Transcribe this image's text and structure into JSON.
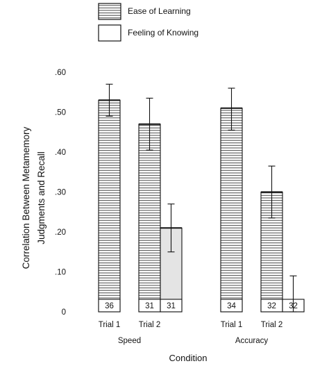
{
  "chart_data": {
    "type": "bar",
    "ylabel": [
      "Correlation Between Metamemory",
      "Judgments and Recall"
    ],
    "xlabel": "Condition",
    "ylim": [
      0,
      0.6
    ],
    "yticks": [
      {
        "value": 0,
        "label": "0"
      },
      {
        "value": 0.1,
        "label": ".10"
      },
      {
        "value": 0.2,
        "label": ".20"
      },
      {
        "value": 0.3,
        "label": ".30"
      },
      {
        "value": 0.4,
        "label": ".40"
      },
      {
        "value": 0.5,
        "label": ".50"
      },
      {
        "value": 0.6,
        "label": ".60"
      }
    ],
    "legend": [
      {
        "label": "Ease of Learning",
        "pattern": "hatched"
      },
      {
        "label": "Feeling of Knowing",
        "pattern": "open"
      }
    ],
    "groups": [
      {
        "name": "Speed",
        "trials": [
          {
            "label": "Trial 1",
            "bars": [
              {
                "series": "Ease of Learning",
                "value": 0.53,
                "err_low": 0.49,
                "err_high": 0.57,
                "n": "36"
              }
            ]
          },
          {
            "label": "Trial 2",
            "bars": [
              {
                "series": "Ease of Learning",
                "value": 0.47,
                "err_low": 0.405,
                "err_high": 0.535,
                "n": "31"
              },
              {
                "series": "Feeling of Knowing",
                "value": 0.21,
                "err_low": 0.15,
                "err_high": 0.27,
                "n": "31"
              }
            ]
          }
        ]
      },
      {
        "name": "Accuracy",
        "trials": [
          {
            "label": "Trial 1",
            "bars": [
              {
                "series": "Ease of Learning",
                "value": 0.51,
                "err_low": 0.455,
                "err_high": 0.56,
                "n": "34"
              }
            ]
          },
          {
            "label": "Trial 2",
            "bars": [
              {
                "series": "Ease of Learning",
                "value": 0.3,
                "err_low": 0.235,
                "err_high": 0.365,
                "n": "32"
              },
              {
                "series": "Feeling of Knowing",
                "value": 0.03,
                "err_low": 0.0,
                "err_high": 0.09,
                "n": "32"
              }
            ]
          }
        ]
      }
    ],
    "colors": {
      "ink": "#111111",
      "hatch_fill": "#ffffff",
      "fok_shade": "#e4e4e4"
    }
  }
}
